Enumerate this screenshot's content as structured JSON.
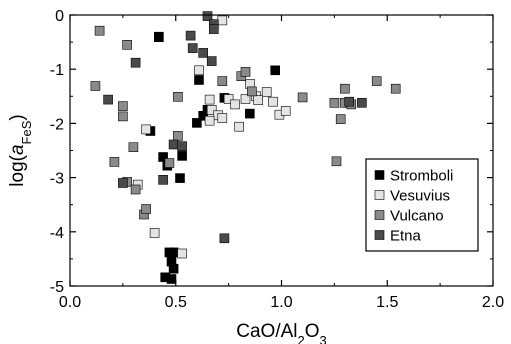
{
  "chart_data": {
    "type": "scatter",
    "xlabel": "CaO/Al2O3",
    "ylabel": "log(aFeS)",
    "xlim": [
      0,
      2
    ],
    "ylim": [
      -5,
      0
    ],
    "xticks": [
      0,
      0.5,
      1,
      1.5,
      2
    ],
    "xtick_labels": [
      "0.0",
      "0.5",
      "1.0",
      "1.5",
      "2.0"
    ],
    "yticks": [
      0,
      -1,
      -2,
      -3,
      -4,
      -5
    ],
    "ytick_labels": [
      "0",
      "-1",
      "-2",
      "-3",
      "-4",
      "-5"
    ],
    "grid": false,
    "legend_position": "bottom-right",
    "series": [
      {
        "name": "Stromboli",
        "color": "#000000",
        "points": [
          [
            0.63,
            -1.86
          ],
          [
            0.52,
            -3.01
          ],
          [
            0.97,
            -1.02
          ],
          [
            0.85,
            -1.82
          ],
          [
            0.44,
            -2.62
          ],
          [
            0.46,
            -2.78
          ],
          [
            0.53,
            -2.6
          ],
          [
            0.42,
            -0.41
          ],
          [
            0.65,
            -1.75
          ],
          [
            0.38,
            -2.14
          ],
          [
            0.48,
            -4.55
          ],
          [
            0.47,
            -4.38
          ],
          [
            0.49,
            -4.38
          ],
          [
            0.45,
            -4.84
          ],
          [
            0.48,
            -4.87
          ],
          [
            0.49,
            -4.68
          ],
          [
            0.6,
            -1.99
          ],
          [
            0.73,
            -1.53
          ],
          [
            0.61,
            -1.2
          ],
          [
            0.42,
            -0.4
          ]
        ]
      },
      {
        "name": "Vesuvius",
        "color": "#e4e4e4",
        "points": [
          [
            0.72,
            -0.1
          ],
          [
            0.61,
            -1.02
          ],
          [
            0.66,
            -1.56
          ],
          [
            0.67,
            -1.75
          ],
          [
            0.7,
            -1.85
          ],
          [
            0.66,
            -1.95
          ],
          [
            0.75,
            -1.55
          ],
          [
            0.78,
            -1.65
          ],
          [
            0.8,
            -2.06
          ],
          [
            0.83,
            -1.55
          ],
          [
            0.85,
            -1.27
          ],
          [
            0.88,
            -1.5
          ],
          [
            0.93,
            -1.42
          ],
          [
            0.96,
            -1.6
          ],
          [
            0.99,
            -1.84
          ],
          [
            1.02,
            -1.77
          ],
          [
            0.32,
            -3.13
          ],
          [
            0.36,
            -2.11
          ],
          [
            0.4,
            -4.02
          ],
          [
            0.53,
            -4.4
          ],
          [
            0.72,
            -1.9
          ],
          [
            0.89,
            -1.57
          ]
        ]
      },
      {
        "name": "Vulcano",
        "color": "#8a8a8a",
        "points": [
          [
            0.14,
            -0.29
          ],
          [
            0.12,
            -1.31
          ],
          [
            0.25,
            -1.68
          ],
          [
            0.25,
            -1.87
          ],
          [
            0.27,
            -3.08
          ],
          [
            0.27,
            -0.55
          ],
          [
            0.21,
            -2.71
          ],
          [
            0.31,
            -3.22
          ],
          [
            0.35,
            -3.68
          ],
          [
            0.36,
            -3.58
          ],
          [
            0.47,
            -2.73
          ],
          [
            0.51,
            -2.23
          ],
          [
            0.51,
            -1.51
          ],
          [
            0.72,
            -1.22
          ],
          [
            0.81,
            -1.13
          ],
          [
            0.83,
            -1.05
          ],
          [
            0.86,
            -1.41
          ],
          [
            1.1,
            -1.52
          ],
          [
            1.25,
            -1.62
          ],
          [
            1.3,
            -1.36
          ],
          [
            1.3,
            -1.62
          ],
          [
            1.33,
            -1.65
          ],
          [
            1.45,
            -1.22
          ],
          [
            1.54,
            -1.36
          ],
          [
            1.26,
            -2.7
          ],
          [
            1.28,
            -1.92
          ],
          [
            0.3,
            -2.44
          ]
        ]
      },
      {
        "name": "Etna",
        "color": "#4a4a4a",
        "points": [
          [
            0.65,
            -0.02
          ],
          [
            0.68,
            -0.17
          ],
          [
            0.57,
            -0.38
          ],
          [
            0.58,
            -0.61
          ],
          [
            0.63,
            -0.7
          ],
          [
            0.67,
            -0.85
          ],
          [
            0.68,
            -0.26
          ],
          [
            0.44,
            -3.04
          ],
          [
            0.49,
            -2.39
          ],
          [
            0.25,
            -3.1
          ],
          [
            0.31,
            -0.88
          ],
          [
            0.73,
            -4.12
          ],
          [
            0.18,
            -1.56
          ],
          [
            1.32,
            -1.6
          ],
          [
            1.38,
            -1.62
          ],
          [
            0.53,
            -2.42
          ]
        ]
      }
    ]
  }
}
